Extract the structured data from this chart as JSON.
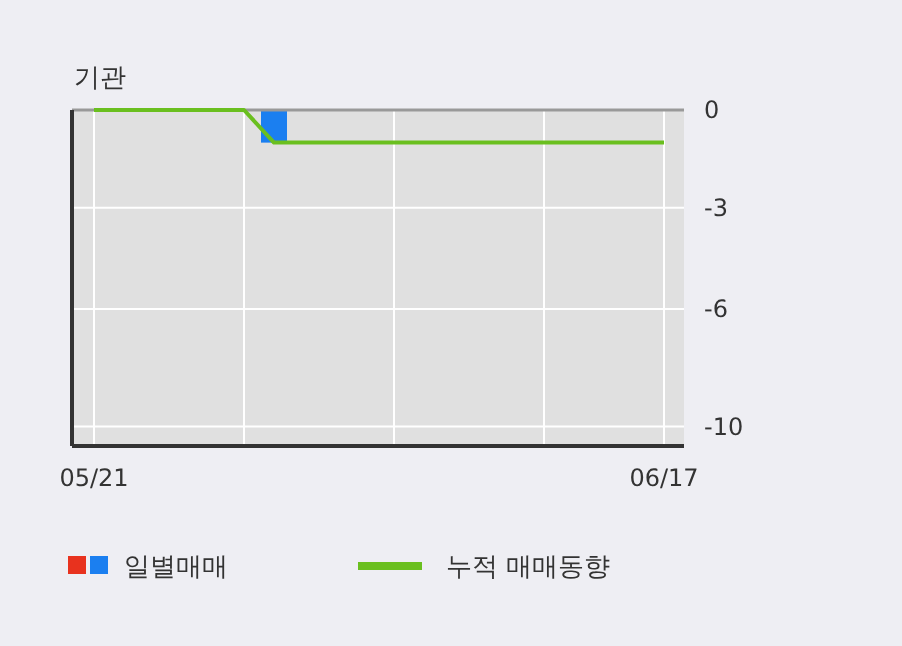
{
  "chart_data": {
    "type": "bar",
    "title": "기관",
    "categories": [
      "05/21",
      null,
      null,
      null,
      null,
      null,
      null,
      null,
      null,
      null,
      null,
      null,
      null,
      null,
      null,
      null,
      null,
      null,
      null,
      "06/17"
    ],
    "series": [
      {
        "name": "일별매매",
        "color": "#1b7ff0",
        "values": [
          0,
          0,
          0,
          0,
          0,
          0,
          -1,
          0,
          0,
          0,
          0,
          0,
          0,
          0,
          0,
          0,
          0,
          0,
          0,
          0
        ]
      },
      {
        "name": "누적 매매동향",
        "type": "line",
        "color": "#6abf1f",
        "values": [
          0,
          0,
          0,
          0,
          0,
          0,
          -1,
          -1,
          -1,
          -1,
          -1,
          -1,
          -1,
          -1,
          -1,
          -1,
          -1,
          -1,
          -1,
          -1
        ]
      }
    ],
    "ylim": [
      -10.3,
      0
    ],
    "yticks": [
      0,
      -3,
      {
        "value": -6.1,
        "label": "-6"
      },
      {
        "value": -9.7,
        "label": "-10"
      }
    ],
    "grid": true,
    "legend": "bottom"
  }
}
